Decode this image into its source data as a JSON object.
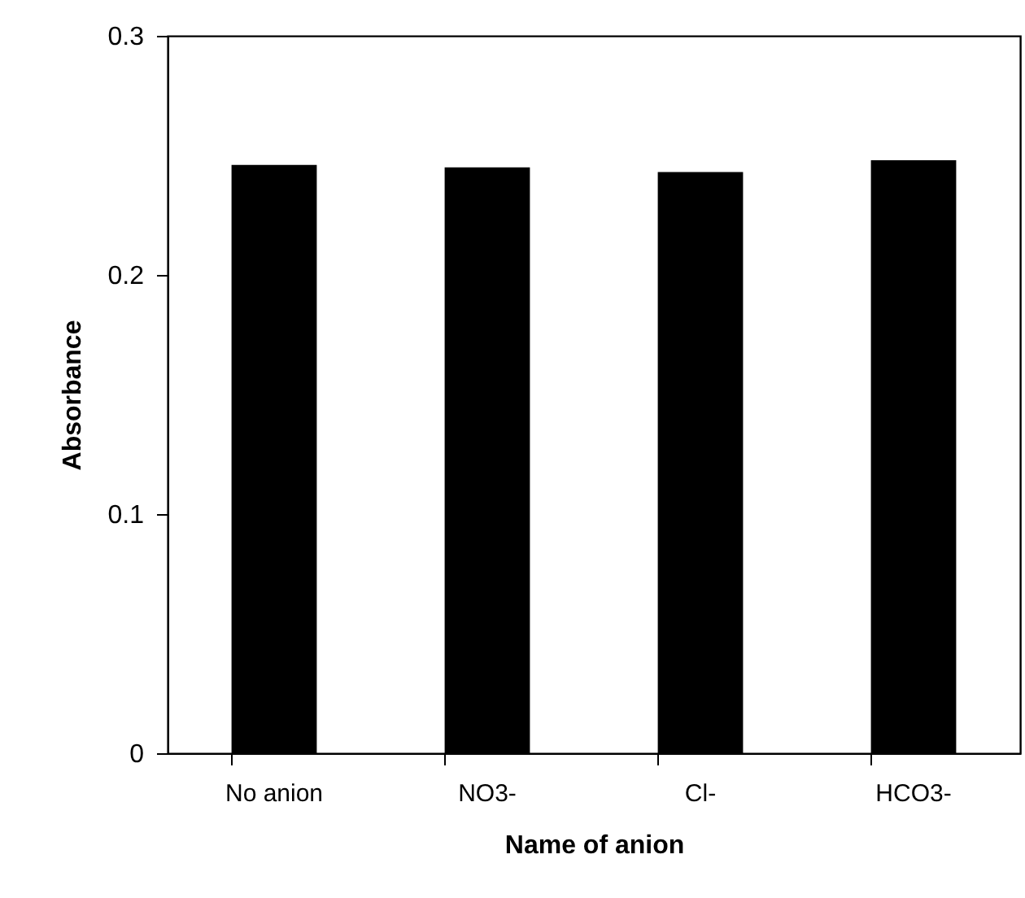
{
  "chart_data": {
    "type": "bar",
    "xlabel": "Name of anion",
    "ylabel": "Absorbance",
    "categories": [
      "No anion",
      "NO3-",
      "Cl-",
      "HCO3-"
    ],
    "values": [
      0.246,
      0.245,
      0.243,
      0.248
    ],
    "color": "#000000",
    "ylim": [
      0,
      0.3
    ],
    "yticks": [
      0,
      0.1,
      0.2,
      0.3
    ],
    "grid": false
  }
}
